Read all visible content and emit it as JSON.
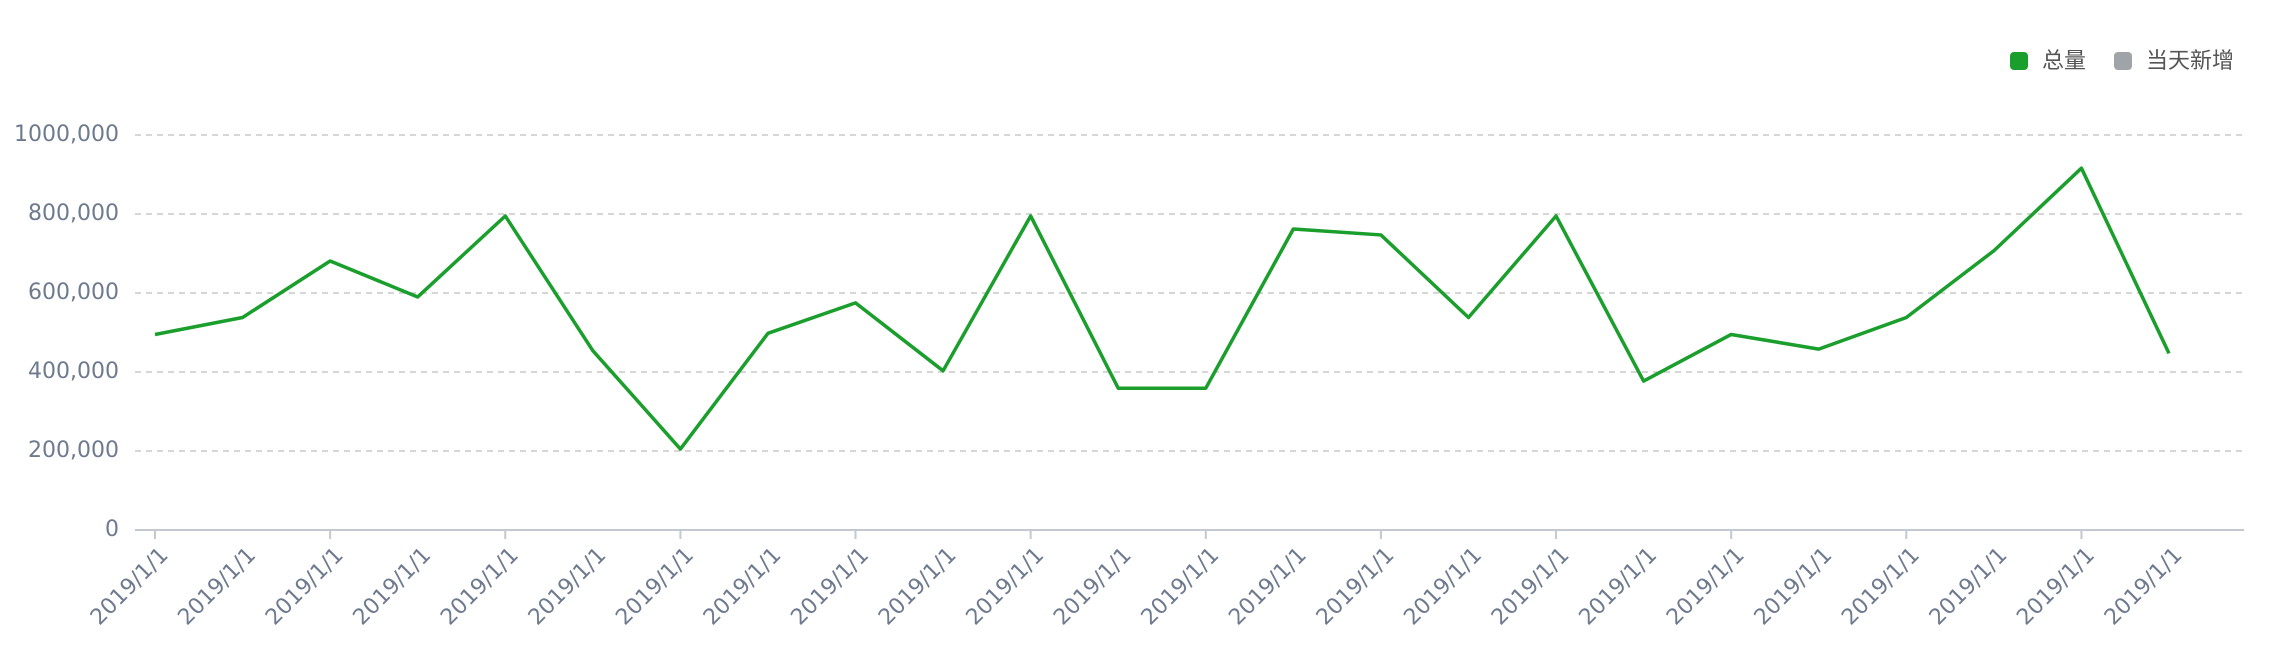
{
  "chart_data": {
    "type": "line",
    "categories": [
      "2019/1/1",
      "2019/1/1",
      "2019/1/1",
      "2019/1/1",
      "2019/1/1",
      "2019/1/1",
      "2019/1/1",
      "2019/1/1",
      "2019/1/1",
      "2019/1/1",
      "2019/1/1",
      "2019/1/1",
      "2019/1/1",
      "2019/1/1",
      "2019/1/1",
      "2019/1/1",
      "2019/1/1",
      "2019/1/1",
      "2019/1/1",
      "2019/1/1",
      "2019/1/1",
      "2019/1/1",
      "2019/1/1",
      "2019/1/1"
    ],
    "series": [
      {
        "name": "总量",
        "color": "#1a9e2c",
        "values": [
          495000,
          538000,
          681000,
          590000,
          795000,
          454000,
          205000,
          498000,
          575000,
          403000,
          795000,
          359000,
          359000,
          762000,
          747000,
          538000,
          795000,
          377000,
          495000,
          458000,
          538000,
          707000,
          916000,
          447000
        ]
      },
      {
        "name": "当天新增",
        "color": "#a0a4a8",
        "values": [
          null,
          null,
          null,
          null,
          null,
          null,
          null,
          null,
          null,
          null,
          null,
          null,
          null,
          null,
          null,
          null,
          null,
          null,
          null,
          null,
          null,
          null,
          null,
          null
        ]
      }
    ],
    "ylim": [
      0,
      1000000
    ],
    "yticks": [
      0,
      {
        "value": 200000,
        "label": "200,000"
      },
      {
        "value": 400000,
        "label": "400,000"
      },
      {
        "value": 600000,
        "label": "600,000"
      },
      {
        "value": 800000,
        "label": "800,000"
      },
      {
        "value": 1000000,
        "label": "1000,000"
      }
    ],
    "grid": true,
    "legend": "top-right"
  }
}
